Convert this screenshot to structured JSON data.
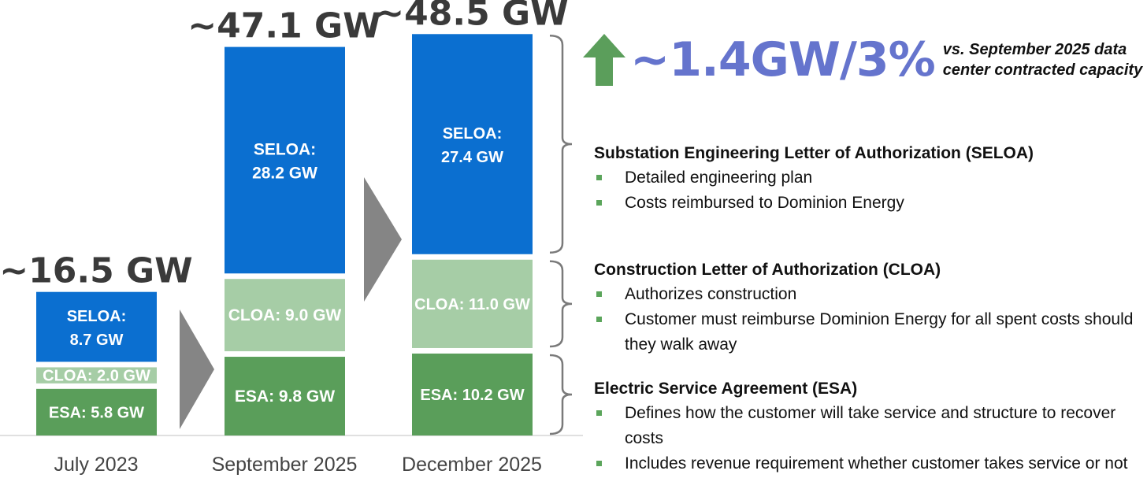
{
  "chart_data": {
    "type": "bar",
    "stacked": true,
    "unit": "GW",
    "categories": [
      "July 2023",
      "September 2025",
      "December 2025"
    ],
    "totals": [
      "~16.5 GW",
      "~47.1 GW",
      "~48.5 GW"
    ],
    "series": [
      {
        "name": "ESA",
        "values": [
          5.8,
          9.8,
          10.2
        ],
        "labels": [
          "ESA: 5.8 GW",
          "ESA: 9.8 GW",
          "ESA: 10.2 GW"
        ],
        "color": "#5a9e5a"
      },
      {
        "name": "CLOA",
        "values": [
          2.0,
          9.0,
          11.0
        ],
        "labels": [
          "CLOA: 2.0 GW",
          "CLOA: 9.0 GW",
          "CLOA: 11.0 GW"
        ],
        "color": "#a6cda6"
      },
      {
        "name": "SELOA",
        "values": [
          8.7,
          28.2,
          27.4
        ],
        "labels": [
          [
            "SELOA:",
            "8.7 GW"
          ],
          [
            "SELOA:",
            "28.2 GW"
          ],
          [
            "SELOA:",
            "27.4 GW"
          ]
        ],
        "color": "#0b6fd0"
      }
    ],
    "transition_arrow_color": "#858585",
    "bracket_color": "#7a7a7a"
  },
  "headline": {
    "change": "~1.4GW/3%",
    "note_line1": "vs. September 2025 data",
    "note_line2": "center contracted capacity",
    "arrow_icon": "up-arrow-icon",
    "arrow_color": "#5b9e5b",
    "change_color": "#6574cd"
  },
  "sections": [
    {
      "title": "Substation Engineering Letter of Authorization (SELOA)",
      "bullets": [
        "Detailed engineering plan",
        "Costs reimbursed to Dominion Energy"
      ]
    },
    {
      "title": "Construction Letter of Authorization (CLOA)",
      "bullets": [
        "Authorizes construction",
        "Customer must reimburse Dominion Energy for all spent costs should they walk away"
      ]
    },
    {
      "title": "Electric Service Agreement (ESA)",
      "bullets": [
        "Defines how the customer will take service and structure to recover costs",
        "Includes revenue requirement whether customer takes service or not"
      ]
    }
  ]
}
